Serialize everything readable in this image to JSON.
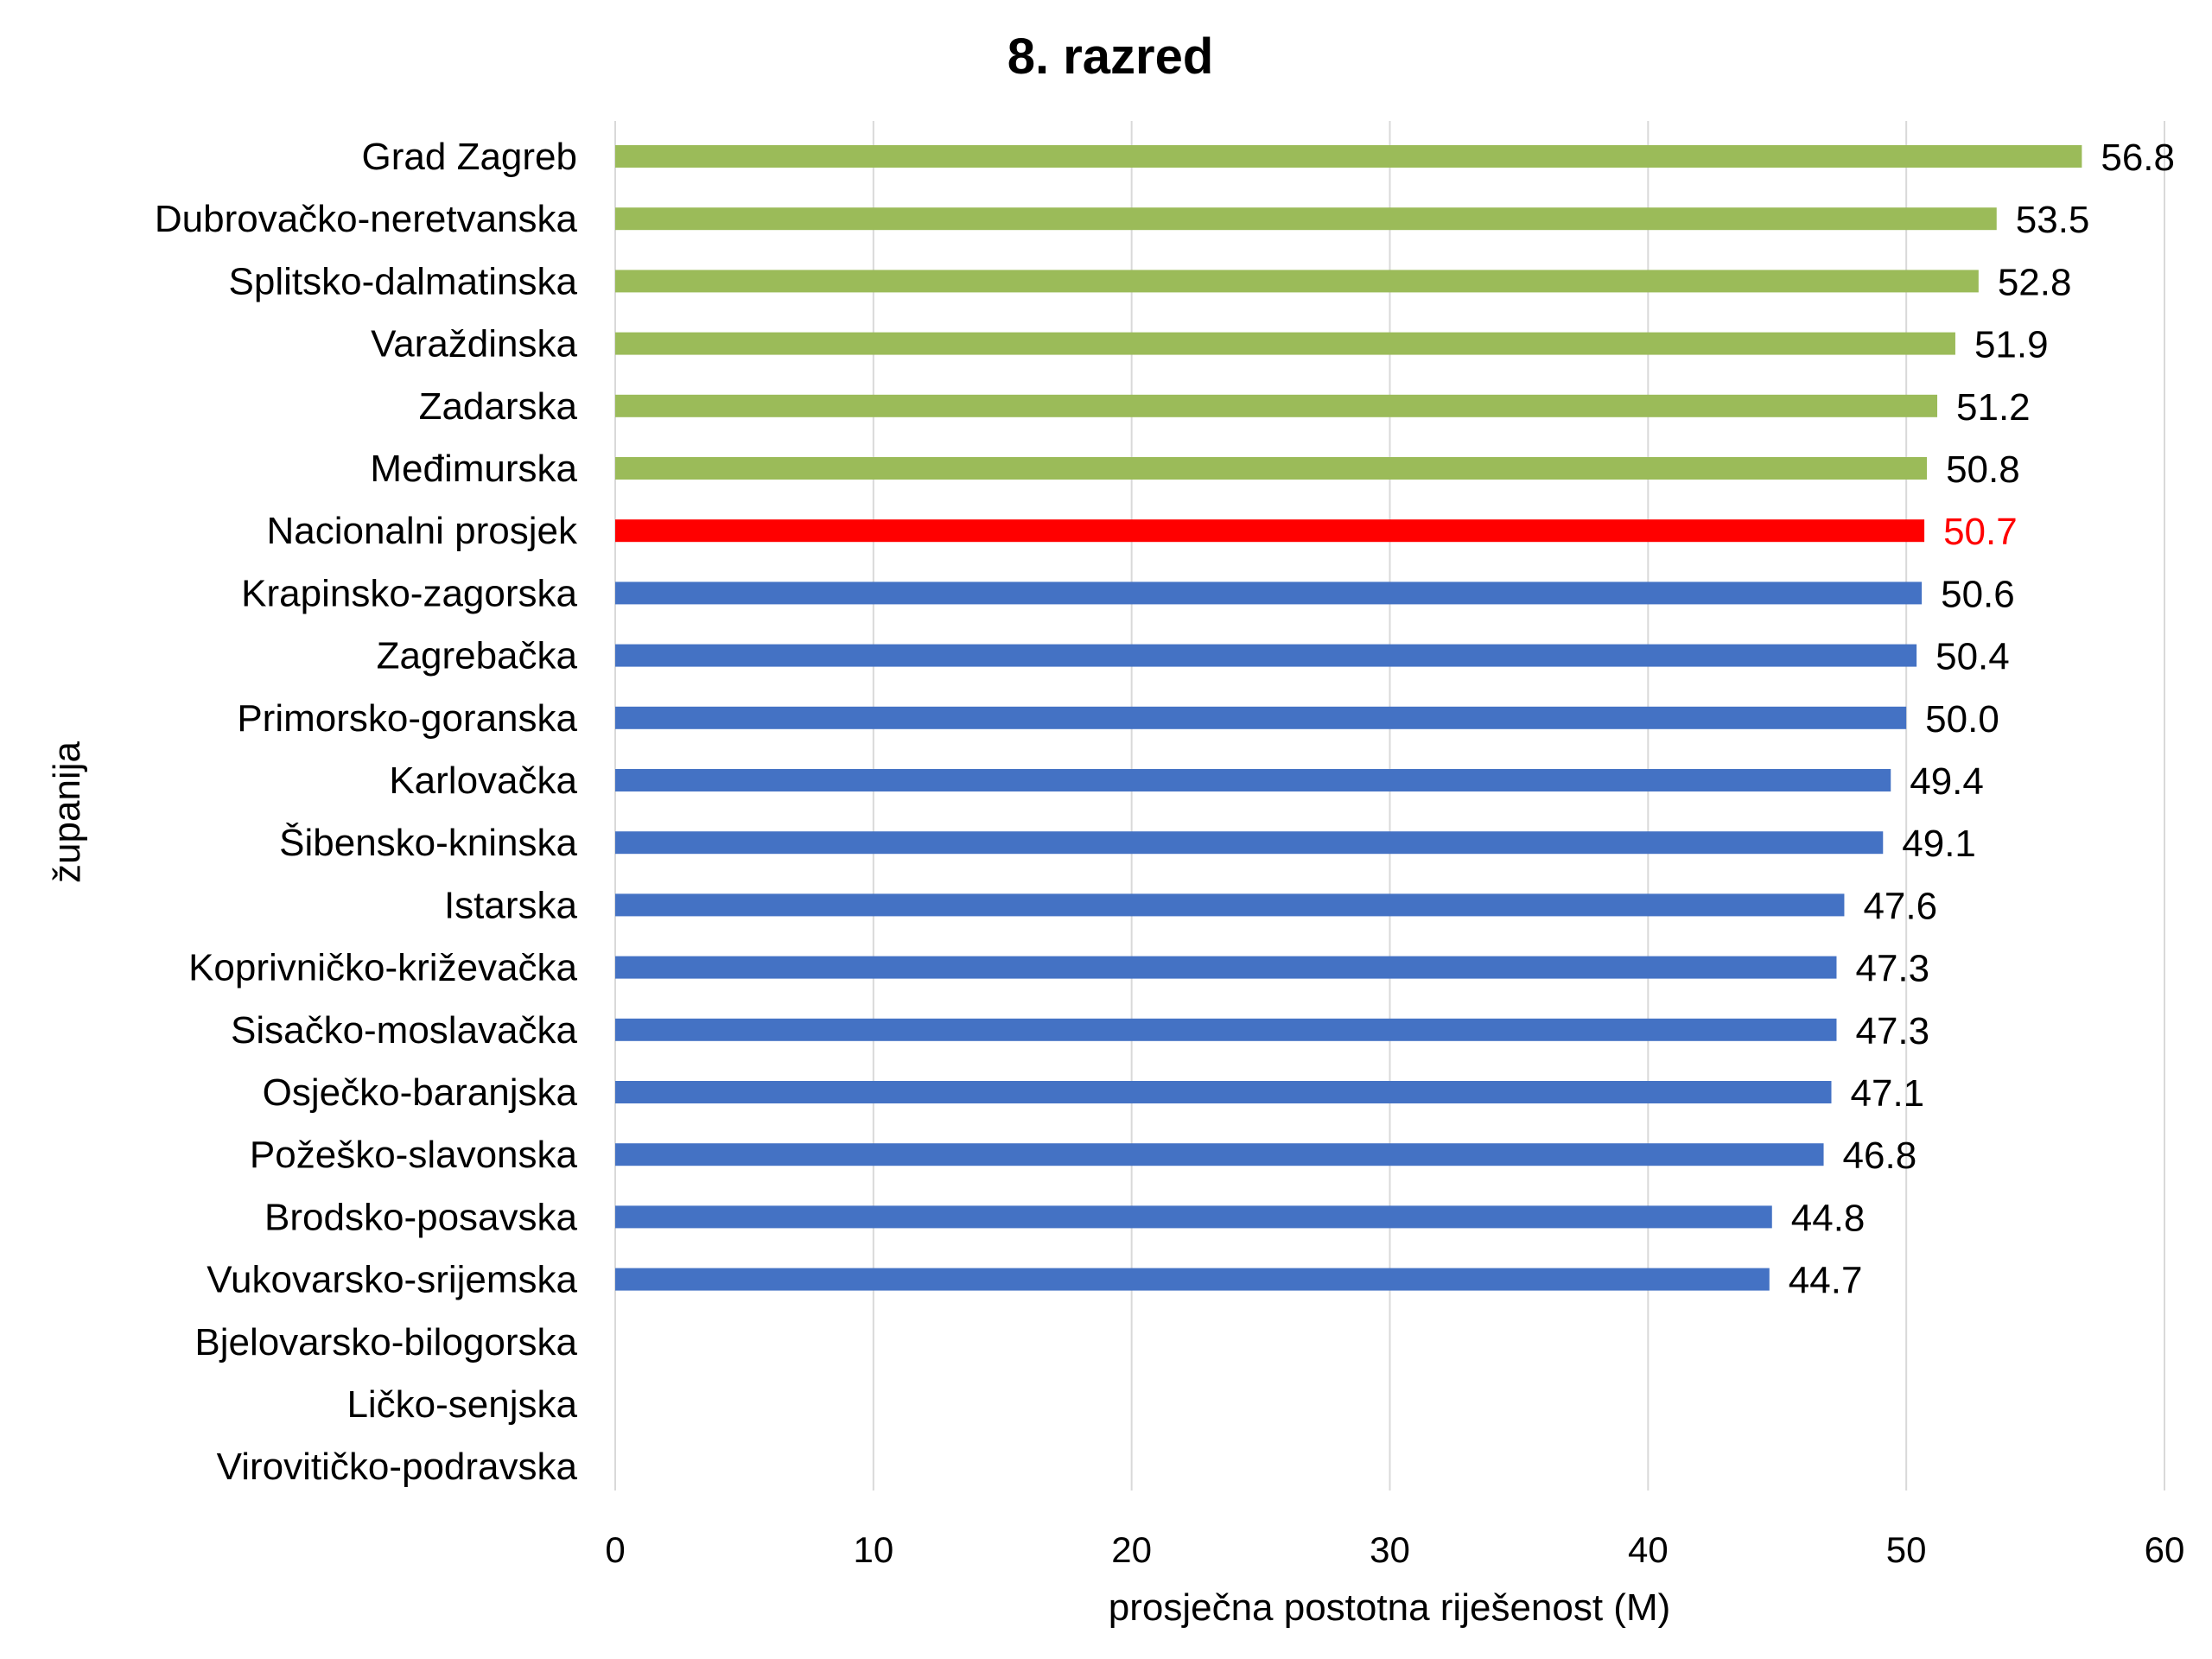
{
  "chart_data": {
    "type": "bar",
    "orientation": "horizontal",
    "title": "8. razred",
    "xlabel": "prosječna postotna riješenost (M)",
    "ylabel": "županija",
    "xlim": [
      0,
      60
    ],
    "xticks": [
      0,
      10,
      20,
      30,
      40,
      50,
      60
    ],
    "grid": "vertical",
    "categories": [
      "Grad Zagreb",
      "Dubrovačko-neretvanska",
      "Splitsko-dalmatinska",
      "Varaždinska",
      "Zadarska",
      "Međimurska",
      "Nacionalni prosjek",
      "Krapinsko-zagorska",
      "Zagrebačka",
      "Primorsko-goranska",
      "Karlovačka",
      "Šibensko-kninska",
      "Istarska",
      "Koprivničko-križevačka",
      "Sisačko-moslavačka",
      "Osječko-baranjska",
      "Požeško-slavonska",
      "Brodsko-posavska",
      "Vukovarsko-srijemska",
      "Bjelovarsko-bilogorska",
      "Ličko-senjska",
      "Virovitičko-podravska"
    ],
    "values": [
      56.8,
      53.5,
      52.8,
      51.9,
      51.2,
      50.8,
      50.7,
      50.6,
      50.4,
      50.0,
      49.4,
      49.1,
      47.6,
      47.3,
      47.3,
      47.1,
      46.8,
      44.8,
      44.7,
      null,
      null,
      null
    ],
    "value_labels": [
      "56.8",
      "53.5",
      "52.8",
      "51.9",
      "51.2",
      "50.8",
      "50.7",
      "50.6",
      "50.4",
      "50.0",
      "49.4",
      "49.1",
      "47.6",
      "47.3",
      "47.3",
      "47.1",
      "46.8",
      "44.8",
      "44.7",
      "",
      "",
      ""
    ],
    "bar_groups": [
      "above",
      "above",
      "above",
      "above",
      "above",
      "above",
      "national",
      "below",
      "below",
      "below",
      "below",
      "below",
      "below",
      "below",
      "below",
      "below",
      "below",
      "below",
      "below",
      "none",
      "none",
      "none"
    ],
    "colors": {
      "above": "#9bbb59",
      "national": "#ff0000",
      "below": "#4472c4",
      "label_default": "#000000",
      "label_national": "#ff0000"
    }
  }
}
